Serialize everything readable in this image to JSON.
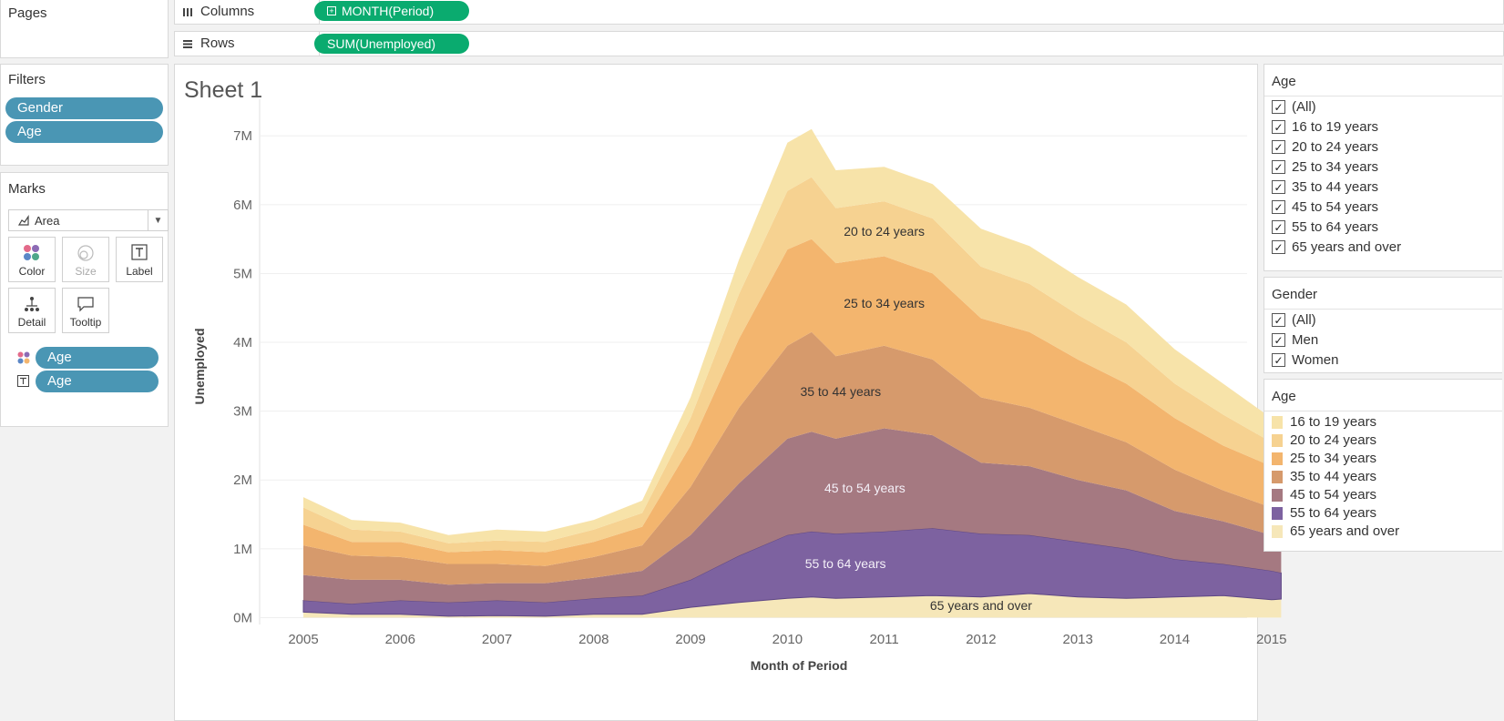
{
  "pages_panel": {
    "title": "Pages"
  },
  "columns_shelf": {
    "label": "Columns",
    "pill": "MONTH(Period)"
  },
  "rows_shelf": {
    "label": "Rows",
    "pill": "SUM(Unemployed)"
  },
  "filters_panel": {
    "title": "Filters",
    "pills": [
      "Gender",
      "Age"
    ]
  },
  "marks_panel": {
    "title": "Marks",
    "mark_type": "Area",
    "buttons": {
      "color": "Color",
      "size": "Size",
      "label": "Label",
      "detail": "Detail",
      "tooltip": "Tooltip"
    },
    "fields": [
      {
        "kind": "color",
        "name": "Age"
      },
      {
        "kind": "label",
        "name": "Age"
      }
    ]
  },
  "sheet": {
    "title": "Sheet 1"
  },
  "age_filter": {
    "title": "Age",
    "items": [
      "(All)",
      "16 to 19 years",
      "20 to 24 years",
      "25 to 34 years",
      "35 to 44 years",
      "45 to 54 years",
      "55 to 64 years",
      "65 years and over"
    ]
  },
  "gender_filter": {
    "title": "Gender",
    "items": [
      "(All)",
      "Men",
      "Women"
    ]
  },
  "age_legend": {
    "title": "Age",
    "items": [
      {
        "label": "16 to 19 years",
        "color": "#f7e3a9"
      },
      {
        "label": "20 to 24 years",
        "color": "#f6d291"
      },
      {
        "label": "25 to 34 years",
        "color": "#f3b56e"
      },
      {
        "label": "35 to 44 years",
        "color": "#d69a6c"
      },
      {
        "label": "45 to 54 years",
        "color": "#a57981"
      },
      {
        "label": "55 to 64 years",
        "color": "#7d62a0"
      },
      {
        "label": "65 years and over",
        "color": "#f6e7b9"
      }
    ]
  },
  "chart_data": {
    "type": "area",
    "stacked": true,
    "title": "",
    "xlabel": "Month of Period",
    "ylabel": "Unemployed",
    "xlim": [
      2005,
      2015.2
    ],
    "ylim": [
      -0.1,
      7.4
    ],
    "x_ticks": [
      "2005",
      "2006",
      "2007",
      "2008",
      "2009",
      "2010",
      "2011",
      "2012",
      "2013",
      "2014",
      "2015"
    ],
    "y_ticks": [
      "0M",
      "1M",
      "2M",
      "3M",
      "4M",
      "5M",
      "6M",
      "7M"
    ],
    "grid": true,
    "x": [
      2005,
      2005.5,
      2006,
      2006.5,
      2007,
      2007.5,
      2008,
      2008.5,
      2009,
      2009.5,
      2010,
      2010.25,
      2010.5,
      2011,
      2011.5,
      2012,
      2012.5,
      2013,
      2013.5,
      2014,
      2014.5,
      2015,
      2015.1
    ],
    "cumulative_top": [
      {
        "name": "65 years and over",
        "values": [
          0.08,
          0.05,
          0.05,
          0.02,
          0.03,
          0.02,
          0.05,
          0.05,
          0.15,
          0.22,
          0.28,
          0.3,
          0.28,
          0.3,
          0.32,
          0.3,
          0.35,
          0.3,
          0.28,
          0.3,
          0.32,
          0.26,
          0.27
        ]
      },
      {
        "name": "55 to 64 years",
        "values": [
          0.25,
          0.2,
          0.25,
          0.22,
          0.25,
          0.22,
          0.28,
          0.32,
          0.55,
          0.9,
          1.2,
          1.25,
          1.22,
          1.25,
          1.3,
          1.22,
          1.2,
          1.1,
          1.0,
          0.85,
          0.78,
          0.68,
          0.65
        ]
      },
      {
        "name": "45 to 54 years",
        "values": [
          0.62,
          0.55,
          0.55,
          0.48,
          0.5,
          0.5,
          0.58,
          0.68,
          1.2,
          1.95,
          2.6,
          2.7,
          2.6,
          2.75,
          2.65,
          2.25,
          2.2,
          2.0,
          1.85,
          1.55,
          1.4,
          1.2,
          1.18
        ]
      },
      {
        "name": "35 to 44 years",
        "values": [
          1.05,
          0.9,
          0.88,
          0.78,
          0.78,
          0.75,
          0.88,
          1.05,
          1.9,
          3.05,
          3.95,
          4.15,
          3.8,
          3.95,
          3.75,
          3.2,
          3.05,
          2.8,
          2.55,
          2.15,
          1.85,
          1.6,
          1.68
        ]
      },
      {
        "name": "25 to 34 years",
        "values": [
          1.35,
          1.1,
          1.1,
          0.95,
          0.98,
          0.95,
          1.1,
          1.32,
          2.5,
          4.05,
          5.35,
          5.5,
          5.15,
          5.25,
          5.0,
          4.35,
          4.15,
          3.75,
          3.4,
          2.9,
          2.5,
          2.2,
          2.3
        ]
      },
      {
        "name": "20 to 24 years",
        "values": [
          1.6,
          1.28,
          1.25,
          1.08,
          1.12,
          1.1,
          1.28,
          1.52,
          2.9,
          4.7,
          6.2,
          6.4,
          5.95,
          6.05,
          5.8,
          5.1,
          4.85,
          4.4,
          4.0,
          3.4,
          2.95,
          2.55,
          2.7
        ]
      },
      {
        "name": "16 to 19 years",
        "values": [
          1.75,
          1.42,
          1.38,
          1.2,
          1.28,
          1.25,
          1.42,
          1.7,
          3.2,
          5.2,
          6.9,
          7.1,
          6.5,
          6.55,
          6.3,
          5.65,
          5.4,
          4.95,
          4.55,
          3.9,
          3.4,
          2.9,
          2.9
        ]
      }
    ],
    "colors": [
      "#f6e7b9",
      "#7d62a0",
      "#a57981",
      "#d69a6c",
      "#f3b56e",
      "#f6d291",
      "#f7e3a9"
    ],
    "area_labels": [
      {
        "text": "20 to 24 years",
        "x": 2011.0,
        "y": 5.55
      },
      {
        "text": "25 to 34 years",
        "x": 2011.0,
        "y": 4.5
      },
      {
        "text": "35 to 44 years",
        "x": 2010.55,
        "y": 3.22
      },
      {
        "text": "45 to 54 years",
        "x": 2010.8,
        "y": 1.82
      },
      {
        "text": "55 to 64 years",
        "x": 2010.6,
        "y": 0.72
      },
      {
        "text": "65 years and over",
        "x": 2012.0,
        "y": 0.11
      }
    ]
  }
}
